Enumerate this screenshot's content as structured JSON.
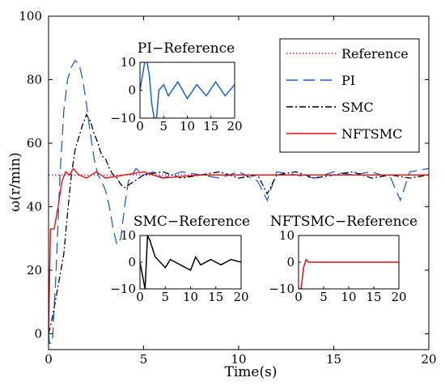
{
  "chart_data": {
    "type": "line",
    "xlabel": "Time(s)",
    "ylabel": "ω(r/min)",
    "xlim": [
      0,
      20
    ],
    "ylim": [
      -5,
      100
    ],
    "xticks": [
      "0",
      "5",
      "10",
      "15",
      "20"
    ],
    "yticks": [
      "0",
      "20",
      "40",
      "60",
      "80",
      "100"
    ],
    "grid": false,
    "legend": {
      "placement": "top-right",
      "entries": [
        {
          "name": "Reference",
          "color": "#c0208a",
          "style": "dotted"
        },
        {
          "name": "PI",
          "color": "#1f5fc8",
          "style": "dashed"
        },
        {
          "name": "SMC",
          "color": "#000000",
          "style": "dashdot"
        },
        {
          "name": "NFTSMC",
          "color": "#e3100e",
          "style": "solid"
        }
      ]
    },
    "series": [
      {
        "name": "Reference",
        "x": [
          0,
          20
        ],
        "values": [
          50,
          50
        ]
      },
      {
        "name": "PI",
        "x": [
          0,
          0.05,
          0.2,
          0.4,
          0.6,
          0.8,
          1.0,
          1.2,
          1.4,
          1.6,
          1.8,
          2.0,
          2.2,
          2.4,
          2.6,
          2.8,
          3.0,
          3.2,
          3.4,
          3.6,
          3.8,
          4.0,
          4.2,
          4.4,
          4.6,
          5.0,
          5.5,
          6,
          7,
          8,
          9,
          10,
          11,
          11.5,
          12,
          13,
          14,
          15,
          16,
          17,
          18,
          18.5,
          19,
          20
        ],
        "values": [
          0,
          -3,
          -3,
          20,
          50,
          70,
          80,
          84,
          86,
          85,
          80,
          72,
          63,
          55,
          50,
          48,
          45,
          40,
          33,
          28,
          30,
          40,
          48,
          50,
          52,
          50,
          51,
          49,
          51,
          50,
          49,
          51,
          48,
          42,
          51,
          50,
          49,
          51,
          50,
          51,
          49,
          42,
          51,
          52
        ]
      },
      {
        "name": "SMC",
        "x": [
          0,
          0.2,
          0.5,
          0.8,
          1.0,
          1.2,
          1.4,
          1.6,
          1.8,
          2.0,
          2.2,
          2.4,
          2.6,
          2.8,
          3.0,
          3.2,
          3.4,
          3.6,
          3.8,
          4.0,
          4.5,
          5.0,
          6,
          7,
          8,
          9,
          10,
          11,
          11.5,
          12,
          13,
          14,
          15,
          16,
          17,
          18,
          19,
          20
        ],
        "values": [
          0,
          5,
          15,
          25,
          38,
          50,
          58,
          62,
          66,
          69,
          67,
          63,
          60,
          56,
          55,
          52,
          50,
          49,
          47,
          46,
          48,
          50,
          51,
          49,
          50,
          51,
          49,
          50,
          44,
          50,
          51,
          49,
          50,
          51,
          49,
          50,
          49,
          50
        ]
      },
      {
        "name": "NFTSMC",
        "x": [
          0,
          0.1,
          0.3,
          0.5,
          0.7,
          0.9,
          1.1,
          1.3,
          1.6,
          2.0,
          2.5,
          3.0,
          4,
          5,
          6,
          8,
          10,
          12,
          14,
          16,
          18,
          20
        ],
        "values": [
          0,
          33,
          33,
          40,
          48,
          51,
          50,
          52,
          50,
          49,
          51,
          49,
          50,
          51,
          49,
          50,
          50,
          50,
          50,
          50,
          50,
          50
        ]
      }
    ],
    "insets": [
      {
        "title": "PI−Reference",
        "color": "#1f5fc8",
        "xlim": [
          0,
          20
        ],
        "ylim": [
          -10,
          10
        ],
        "xticks": [
          "0",
          "5",
          "10",
          "15",
          "20"
        ],
        "yticks": [
          "−10",
          "0",
          "10"
        ],
        "x": [
          0,
          1,
          1.5,
          2,
          2.5,
          3,
          3.5,
          4,
          5,
          6,
          8,
          10,
          12,
          14,
          16,
          18,
          20
        ],
        "values": [
          0,
          10,
          10,
          5,
          -5,
          -10,
          -10,
          0,
          2,
          -2,
          3,
          -3,
          2,
          -2,
          3,
          -2,
          2
        ]
      },
      {
        "title": "SMC−Reference",
        "color": "#000000",
        "xlim": [
          0,
          20
        ],
        "ylim": [
          -10,
          10
        ],
        "xticks": [
          "0",
          "5",
          "10",
          "15",
          "20"
        ],
        "yticks": [
          "−10",
          "0",
          "10"
        ],
        "x": [
          0,
          1,
          1.5,
          2,
          2.5,
          3,
          4,
          5,
          6,
          8,
          10,
          11,
          12,
          14,
          16,
          18,
          20
        ],
        "values": [
          0,
          -10,
          10,
          8,
          5,
          2,
          0,
          -2,
          1,
          -1,
          -3,
          2,
          -1,
          1,
          -1,
          1,
          0
        ]
      },
      {
        "title": "NFTSMC−Reference",
        "color": "#e3100e",
        "xlim": [
          0,
          20
        ],
        "ylim": [
          -10,
          10
        ],
        "xticks": [
          "0",
          "5",
          "10",
          "15",
          "20"
        ],
        "yticks": [
          "−10",
          "0",
          "10"
        ],
        "x": [
          0,
          0.5,
          1,
          1.5,
          2,
          4,
          6,
          8,
          10,
          12,
          14,
          16,
          18,
          20
        ],
        "values": [
          -10,
          -10,
          -2,
          1,
          0,
          0,
          0,
          0,
          0,
          0,
          0,
          0,
          0,
          0
        ]
      }
    ]
  }
}
